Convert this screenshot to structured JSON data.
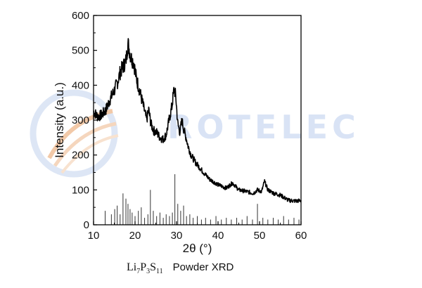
{
  "watermark": {
    "text": "ROTELEC",
    "color": "#d9e3f5",
    "accent_color": "#f2c9a8",
    "icon": "swirl-logo-icon"
  },
  "caption": {
    "formula_parts": [
      {
        "t": "Li",
        "sub": "7"
      },
      {
        "t": "P",
        "sub": "3"
      },
      {
        "t": "S",
        "sub": "11"
      }
    ],
    "label": "Powder XRD"
  },
  "chart_data": {
    "type": "line",
    "title": "",
    "xlabel": "2θ (°)",
    "ylabel": "Intensity (a.u.)",
    "xlim": [
      10,
      60
    ],
    "ylim": [
      0,
      600
    ],
    "xticks": [
      10,
      20,
      30,
      40,
      50,
      60
    ],
    "yticks": [
      0,
      100,
      200,
      300,
      400,
      500,
      600
    ],
    "grid": false,
    "line_color": "#000000",
    "series": [
      {
        "name": "",
        "kind": "line",
        "x": [
          10,
          11,
          12,
          13,
          14,
          15,
          15.8,
          16.5,
          17.2,
          17.8,
          18.3,
          19,
          19.7,
          20.3,
          21,
          21.6,
          22.2,
          22.8,
          23.3,
          23.8,
          24.5,
          25.2,
          26,
          26.8,
          27.5,
          28.2,
          28.9,
          29.4,
          29.8,
          30.3,
          30.8,
          31.3,
          31.8,
          32.3,
          32.8,
          33.5,
          34.5,
          35.5,
          36.5,
          38,
          40,
          42,
          43.5,
          45,
          47,
          48.5,
          49.5,
          50.5,
          51.2,
          52,
          53.5,
          55,
          57,
          59,
          60
        ],
        "y": [
          325,
          310,
          315,
          330,
          360,
          385,
          410,
          440,
          455,
          470,
          520,
          480,
          465,
          420,
          390,
          360,
          330,
          300,
          330,
          290,
          270,
          265,
          250,
          245,
          258,
          300,
          340,
          390,
          370,
          290,
          265,
          300,
          270,
          250,
          225,
          200,
          180,
          165,
          150,
          130,
          115,
          105,
          120,
          100,
          95,
          90,
          100,
          95,
          125,
          100,
          90,
          85,
          70,
          68,
          70
        ]
      },
      {
        "name": "",
        "kind": "reference-sticks",
        "x": [
          12.8,
          14.3,
          15.1,
          15.7,
          16.4,
          17.1,
          17.8,
          18.3,
          18.8,
          19.3,
          20.0,
          20.8,
          21.5,
          22.3,
          23.1,
          23.7,
          24.4,
          25.2,
          26.0,
          26.8,
          27.5,
          28.3,
          29.0,
          29.6,
          30.3,
          31.0,
          31.7,
          32.4,
          33.2,
          34.0,
          35.0,
          36.0,
          37.0,
          38.2,
          39.5,
          40.8,
          42.0,
          43.2,
          44.5,
          45.8,
          47.0,
          48.3,
          49.5,
          50.8,
          52.0,
          53.3,
          54.5,
          55.8,
          57.0,
          58.3,
          59.5
        ],
        "y": [
          40,
          30,
          45,
          55,
          30,
          90,
          75,
          60,
          45,
          35,
          25,
          40,
          50,
          20,
          30,
          100,
          40,
          25,
          35,
          20,
          30,
          25,
          35,
          145,
          60,
          40,
          55,
          25,
          30,
          20,
          25,
          15,
          20,
          15,
          25,
          15,
          20,
          15,
          20,
          15,
          25,
          15,
          60,
          20,
          15,
          20,
          15,
          25,
          15,
          20,
          15
        ]
      }
    ]
  }
}
